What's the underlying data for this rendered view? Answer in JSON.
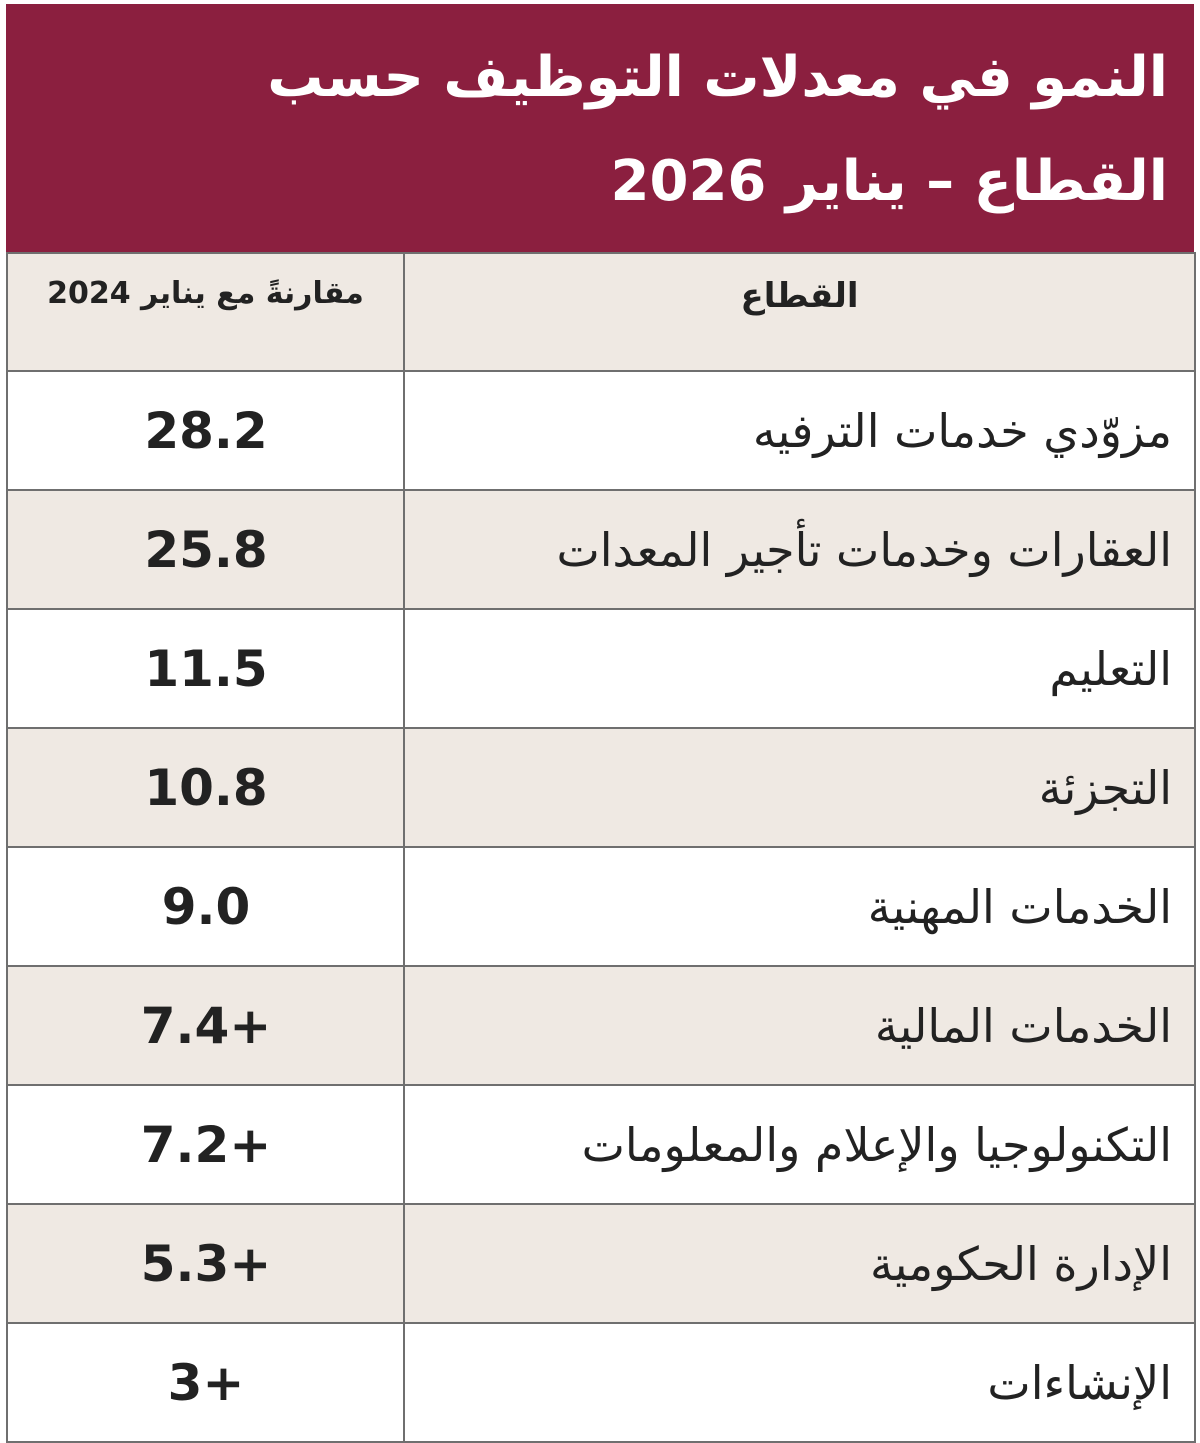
{
  "header": {
    "title": [
      "النمو في معدلات التوظيف حسب",
      "القطاع – يناير 2026"
    ]
  },
  "table": {
    "columns": [
      "القطاع",
      "مقارنةً مع يناير 2024"
    ],
    "rows": [
      [
        "مزوّدي خدمات الترفيه",
        "28.2"
      ],
      [
        "العقارات وخدمات تأجير المعدات",
        "25.8"
      ],
      [
        "التعليم",
        "11.5"
      ],
      [
        "التجزئة",
        "10.8"
      ],
      [
        "الخدمات المهنية",
        "9.0"
      ],
      [
        "الخدمات المالية",
        "7.4+"
      ],
      [
        "التكنولوجيا والإعلام والمعلومات",
        "7.2+"
      ],
      [
        "الإدارة الحكومية",
        "5.3+"
      ],
      [
        "الإنشاءات",
        "3+"
      ]
    ]
  }
}
